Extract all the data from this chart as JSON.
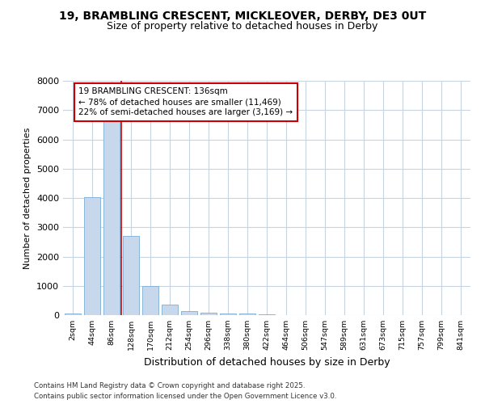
{
  "title1": "19, BRAMBLING CRESCENT, MICKLEOVER, DERBY, DE3 0UT",
  "title2": "Size of property relative to detached houses in Derby",
  "xlabel": "Distribution of detached houses by size in Derby",
  "ylabel": "Number of detached properties",
  "categories": [
    "2sqm",
    "44sqm",
    "86sqm",
    "128sqm",
    "170sqm",
    "212sqm",
    "254sqm",
    "296sqm",
    "338sqm",
    "380sqm",
    "422sqm",
    "464sqm",
    "506sqm",
    "547sqm",
    "589sqm",
    "631sqm",
    "673sqm",
    "715sqm",
    "757sqm",
    "799sqm",
    "841sqm"
  ],
  "values": [
    60,
    4020,
    6620,
    2700,
    980,
    360,
    140,
    70,
    50,
    55,
    30,
    0,
    0,
    0,
    0,
    0,
    0,
    0,
    0,
    0,
    0
  ],
  "bar_color": "#c8d8ec",
  "bar_edge_color": "#7aadd4",
  "vline_color": "#cc0000",
  "vline_x_index": 2.5,
  "annotation_title": "19 BRAMBLING CRESCENT: 136sqm",
  "annotation_line1": "← 78% of detached houses are smaller (11,469)",
  "annotation_line2": "22% of semi-detached houses are larger (3,169) →",
  "annotation_box_edge": "#cc0000",
  "ylim": [
    0,
    8000
  ],
  "yticks": [
    0,
    1000,
    2000,
    3000,
    4000,
    5000,
    6000,
    7000,
    8000
  ],
  "footnote1": "Contains HM Land Registry data © Crown copyright and database right 2025.",
  "footnote2": "Contains public sector information licensed under the Open Government Licence v3.0.",
  "fig_bg_color": "#ffffff",
  "plot_bg_color": "#ffffff",
  "grid_color": "#c8d4e0"
}
